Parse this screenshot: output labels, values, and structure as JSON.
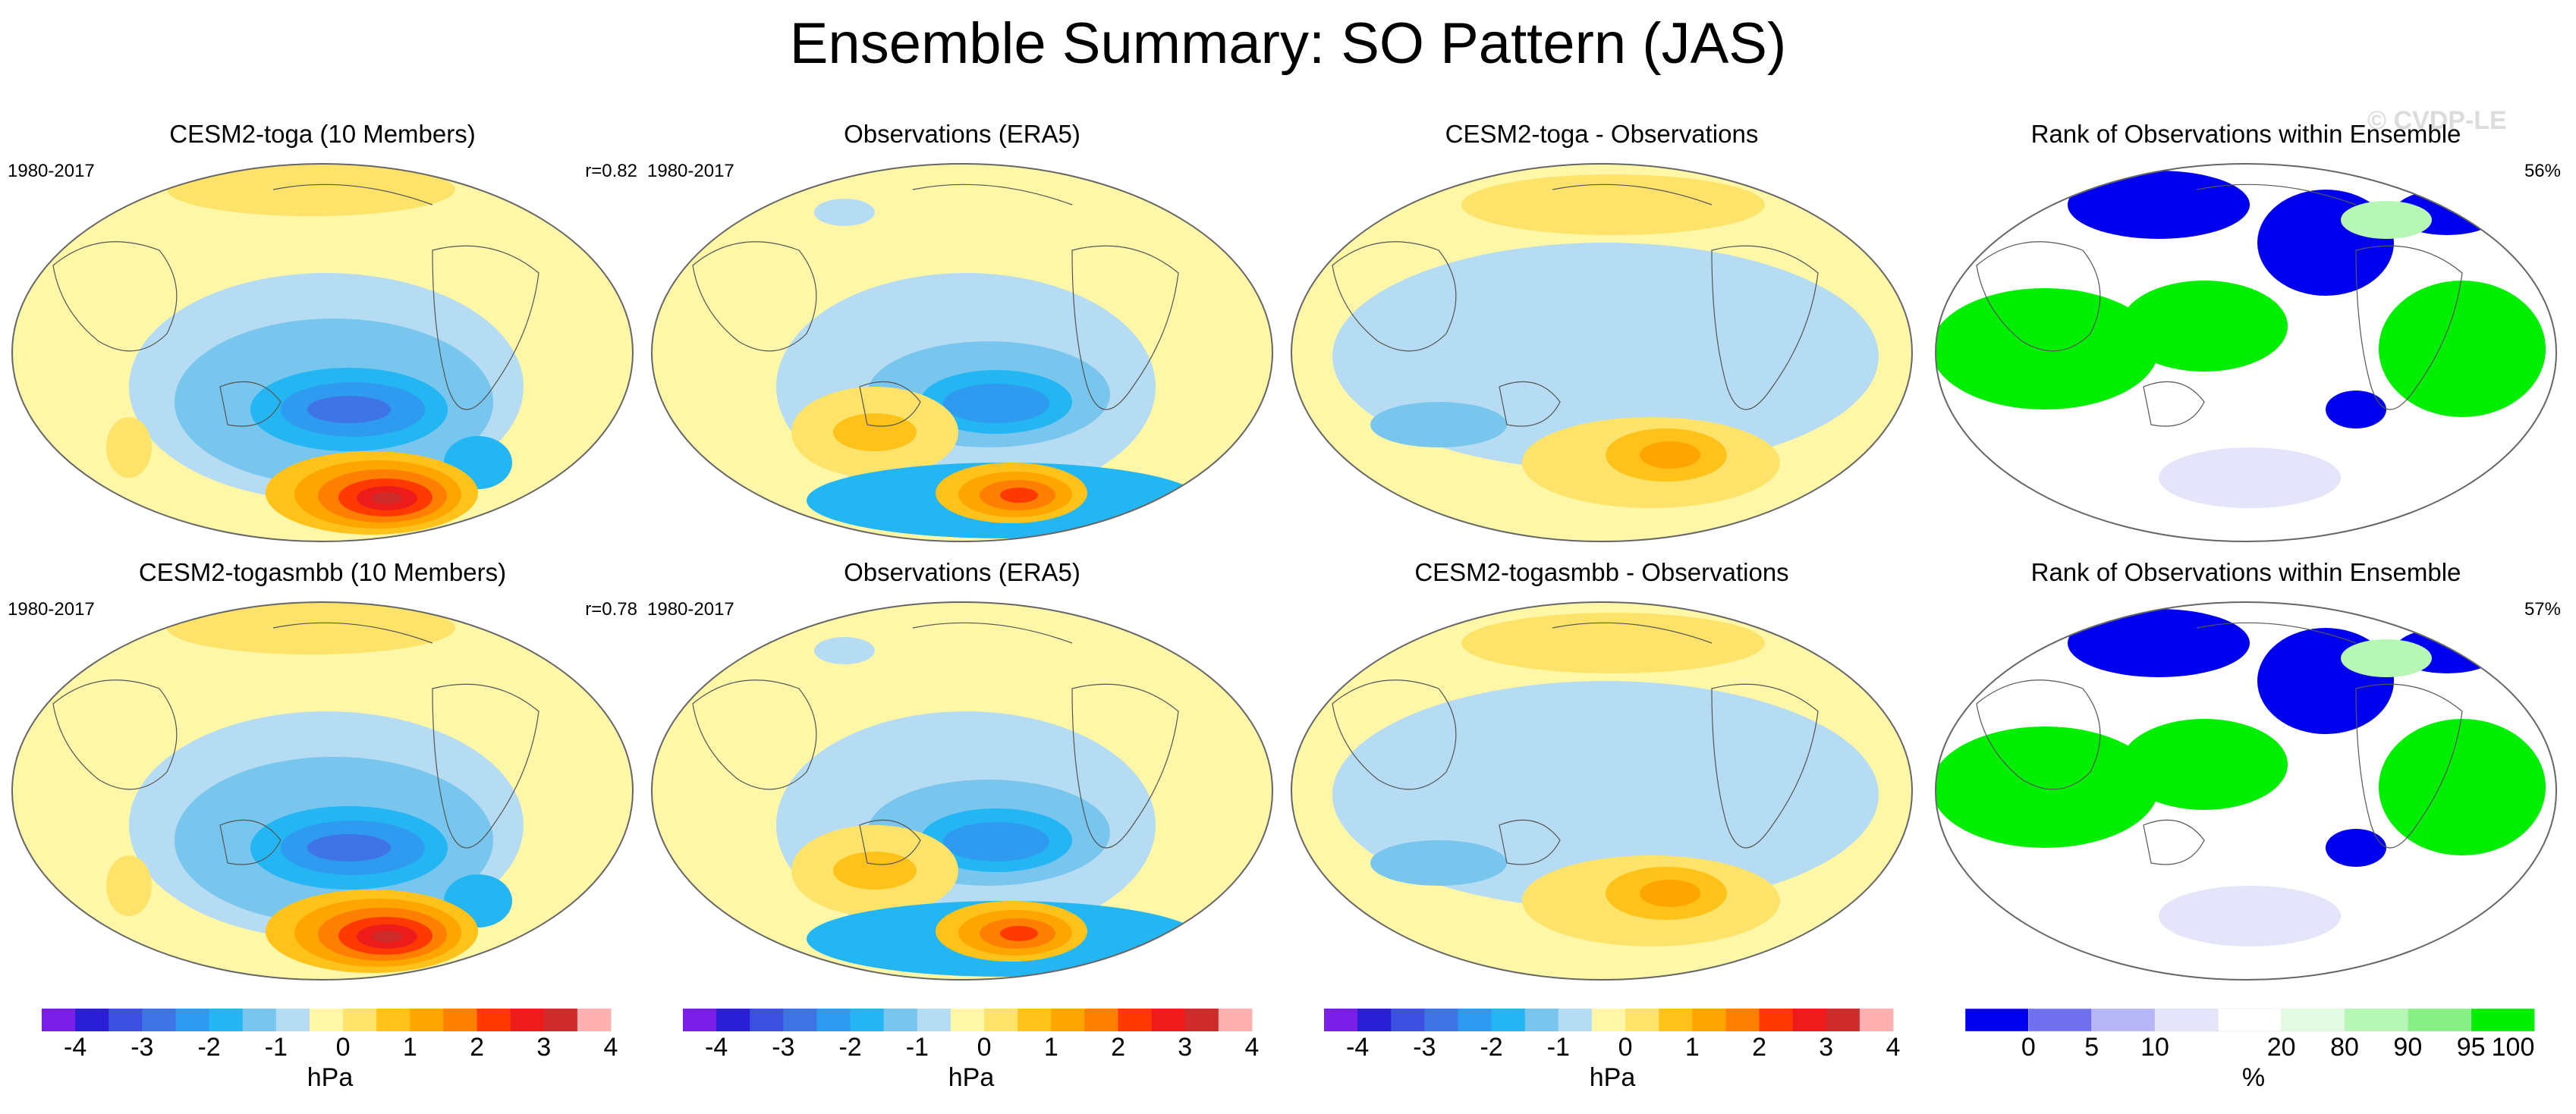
{
  "title": "Ensemble Summary: SO Pattern (JAS)",
  "watermark": "© CVDP-LE",
  "panels": [
    {
      "title": "CESM2-toga (10 Members)",
      "left_label": "1980-2017",
      "right_label": "r=0.82",
      "type": "model"
    },
    {
      "title": "Observations (ERA5)",
      "left_label": "1980-2017",
      "right_label": "",
      "type": "obs"
    },
    {
      "title": "CESM2-toga - Observations",
      "left_label": "",
      "right_label": "",
      "type": "diff"
    },
    {
      "title": "Rank of Observations within Ensemble",
      "left_label": "",
      "right_label": "56%",
      "type": "rank"
    },
    {
      "title": "CESM2-togasmbb (10 Members)",
      "left_label": "1980-2017",
      "right_label": "r=0.78",
      "type": "model"
    },
    {
      "title": "Observations (ERA5)",
      "left_label": "1980-2017",
      "right_label": "",
      "type": "obs"
    },
    {
      "title": "CESM2-togasmbb - Observations",
      "left_label": "",
      "right_label": "",
      "type": "diff"
    },
    {
      "title": "Rank of Observations within Ensemble",
      "left_label": "",
      "right_label": "57%",
      "type": "rank"
    }
  ],
  "colorbars": [
    {
      "unit": "hPa",
      "ticks": [
        "-4",
        "-3",
        "-2",
        "-1",
        "0",
        "1",
        "2",
        "3",
        "4"
      ]
    },
    {
      "unit": "hPa",
      "ticks": [
        "-4",
        "-3",
        "-2",
        "-1",
        "0",
        "1",
        "2",
        "3",
        "4"
      ]
    },
    {
      "unit": "hPa",
      "ticks": [
        "-4",
        "-3",
        "-2",
        "-1",
        "0",
        "1",
        "2",
        "3",
        "4"
      ]
    },
    {
      "unit": "%",
      "ticks": [
        "0",
        "5",
        "10",
        "20",
        "80",
        "90",
        "95",
        "100"
      ]
    }
  ],
  "colors": {
    "hpa_scale": [
      "#7b1ee8",
      "#2a1fd6",
      "#3b4fe0",
      "#3f74e6",
      "#2f9bf0",
      "#23b6f2",
      "#78c5ee",
      "#b5dcf2",
      "#fff7a8",
      "#fde36a",
      "#ffc21a",
      "#ffa500",
      "#ff7f00",
      "#ff3a00",
      "#ee1b1b",
      "#d02b2b",
      "#ffb0b0"
    ],
    "rank_scale": [
      "#0000ee",
      "#6f6ff0",
      "#b6b6f6",
      "#e4e4fa",
      "#ffffff",
      "#e3fbe3",
      "#b6f7b6",
      "#86f086",
      "#00ee00"
    ]
  },
  "chart_data": {
    "type": "heatmap",
    "title": "Ensemble Summary: SO Pattern (JAS)",
    "description_units": "hPa",
    "contour_levels_hpa": [
      -4,
      -3.5,
      -3,
      -2.5,
      -2,
      -1.5,
      -1,
      -0.5,
      0,
      0.5,
      1,
      1.5,
      2,
      2.5,
      3,
      3.5,
      4
    ],
    "rank_levels_pct": [
      0,
      5,
      10,
      20,
      80,
      90,
      95,
      100
    ],
    "pattern_correlations": [
      {
        "model": "CESM2-toga",
        "r": 0.82
      },
      {
        "model": "CESM2-togasmbb",
        "r": 0.78
      }
    ],
    "rank_within_bounds": [
      {
        "model": "CESM2-toga",
        "pct": 56
      },
      {
        "model": "CESM2-togasmbb",
        "pct": 57
      }
    ],
    "period": "1980-2017"
  }
}
